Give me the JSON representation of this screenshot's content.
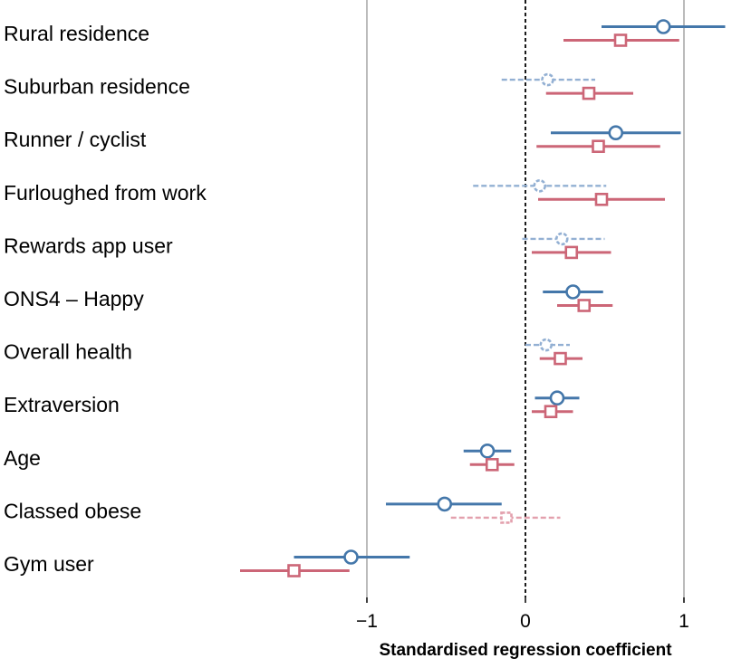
{
  "chart_data": {
    "type": "forest",
    "xlabel": "Standardised regression coefficient",
    "xlim": [
      -2.25,
      1.35
    ],
    "x_ticks": [
      {
        "value": -1,
        "label": "−1"
      },
      {
        "value": 0,
        "label": "0"
      },
      {
        "value": 1,
        "label": "1"
      }
    ],
    "reference_lines": [
      -1,
      1
    ],
    "zero_line": 0,
    "colors": {
      "series_1": "#4477aa",
      "series_2": "#cc6677",
      "series_1_faint": "#93b0d3",
      "series_2_faint": "#e3a0ad",
      "gridline": "#bbbbbb"
    },
    "categories": [
      "Rural residence",
      "Suburban residence",
      "Runner / cyclist",
      "Furloughed from work",
      "Rewards app user",
      "ONS4 – Happy",
      "Overall health",
      "Extraversion",
      "Age",
      "Classed obese",
      "Gym user"
    ],
    "series": [
      {
        "marker": "circle",
        "color": "#4477aa",
        "points": [
          {
            "est": 0.87,
            "lo": 0.48,
            "hi": 1.26,
            "significant": true
          },
          {
            "est": 0.14,
            "lo": -0.15,
            "hi": 0.44,
            "significant": false
          },
          {
            "est": 0.57,
            "lo": 0.16,
            "hi": 0.98,
            "significant": true
          },
          {
            "est": 0.09,
            "lo": -0.33,
            "hi": 0.51,
            "significant": false
          },
          {
            "est": 0.23,
            "lo": -0.02,
            "hi": 0.5,
            "significant": false
          },
          {
            "est": 0.3,
            "lo": 0.11,
            "hi": 0.49,
            "significant": true
          },
          {
            "est": 0.13,
            "lo": 0.0,
            "hi": 0.28,
            "significant": false
          },
          {
            "est": 0.2,
            "lo": 0.06,
            "hi": 0.34,
            "significant": true
          },
          {
            "est": -0.24,
            "lo": -0.39,
            "hi": -0.09,
            "significant": true
          },
          {
            "est": -0.51,
            "lo": -0.88,
            "hi": -0.15,
            "significant": true
          },
          {
            "est": -1.1,
            "lo": -1.46,
            "hi": -0.73,
            "significant": true
          }
        ]
      },
      {
        "marker": "square",
        "color": "#cc6677",
        "points": [
          {
            "est": 0.6,
            "lo": 0.24,
            "hi": 0.97,
            "significant": true
          },
          {
            "est": 0.4,
            "lo": 0.13,
            "hi": 0.68,
            "significant": true
          },
          {
            "est": 0.46,
            "lo": 0.07,
            "hi": 0.85,
            "significant": true
          },
          {
            "est": 0.48,
            "lo": 0.08,
            "hi": 0.88,
            "significant": true
          },
          {
            "est": 0.29,
            "lo": 0.04,
            "hi": 0.54,
            "significant": true
          },
          {
            "est": 0.37,
            "lo": 0.2,
            "hi": 0.55,
            "significant": true
          },
          {
            "est": 0.22,
            "lo": 0.09,
            "hi": 0.36,
            "significant": true
          },
          {
            "est": 0.16,
            "lo": 0.04,
            "hi": 0.3,
            "significant": true
          },
          {
            "est": -0.21,
            "lo": -0.35,
            "hi": -0.07,
            "significant": true
          },
          {
            "est": -0.12,
            "lo": -0.47,
            "hi": 0.22,
            "significant": false
          },
          {
            "est": -1.46,
            "lo": -1.8,
            "hi": -1.11,
            "significant": true
          }
        ]
      }
    ]
  }
}
